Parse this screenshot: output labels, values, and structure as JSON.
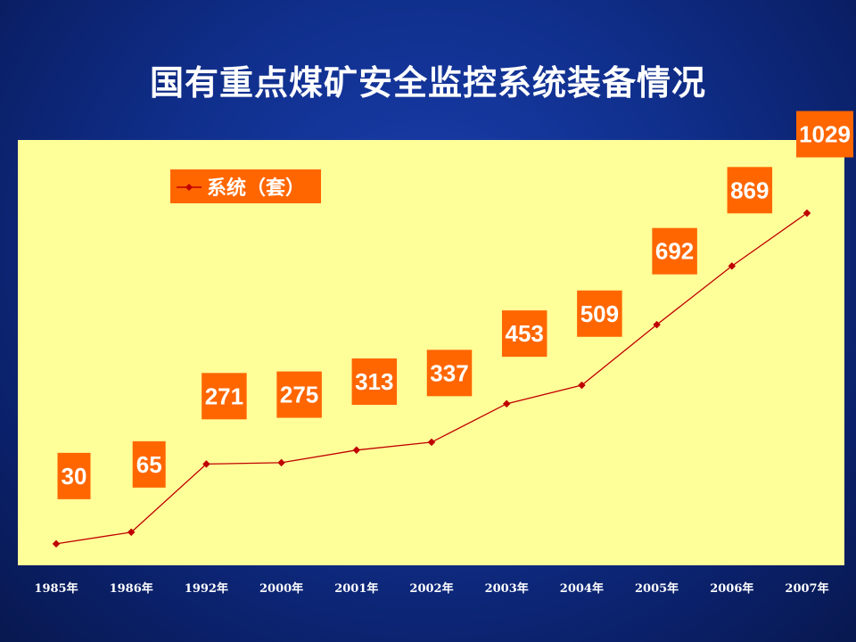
{
  "slide": {
    "title": "国有重点煤矿安全监控系统装备情况",
    "colors": {
      "background": "#102f8c",
      "plot": "#ffff99",
      "line": "#c00000",
      "label_box": "#ff6600",
      "text": "#ffffff"
    }
  },
  "chart_data": {
    "type": "line",
    "title": "国有重点煤矿安全监控系统装备情况",
    "categories": [
      "1985年",
      "1986年",
      "1992年",
      "2000年",
      "2001年",
      "2002年",
      "2003年",
      "2004年",
      "2005年",
      "2006年",
      "2007年"
    ],
    "series": [
      {
        "name": "系统（套）",
        "values": [
          30,
          65,
          271,
          275,
          313,
          337,
          453,
          509,
          692,
          869,
          1029
        ]
      }
    ],
    "data_labels": true,
    "legend": "top-left",
    "grid": false
  }
}
